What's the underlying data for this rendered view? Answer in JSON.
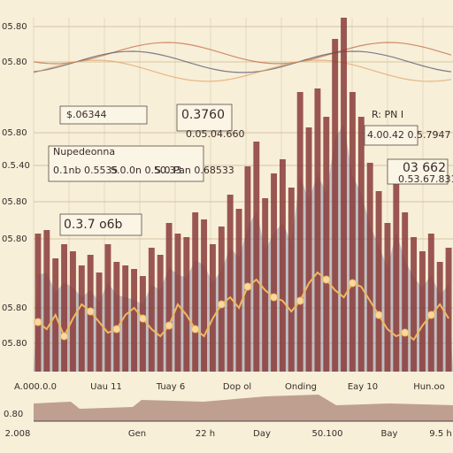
{
  "chart_data": {
    "type": "bar",
    "categories": [
      null,
      null,
      null,
      null,
      null,
      null,
      null,
      null,
      null,
      null,
      null,
      null,
      null,
      null,
      null,
      null,
      null,
      null,
      null,
      null,
      null,
      null,
      null,
      null,
      null,
      null,
      null,
      null,
      null,
      null,
      null,
      null,
      null,
      null,
      null,
      null,
      null,
      null,
      null,
      null,
      null,
      null,
      null,
      null,
      null,
      null,
      null,
      null
    ],
    "values": [
      3.9,
      4.0,
      3.2,
      3.6,
      3.4,
      3.0,
      3.3,
      2.8,
      3.6,
      3.1,
      3.0,
      2.9,
      2.7,
      3.5,
      3.3,
      4.2,
      3.9,
      3.8,
      4.5,
      4.3,
      3.6,
      4.1,
      5.0,
      4.6,
      5.8,
      6.5,
      4.9,
      5.6,
      6.0,
      5.2,
      7.9,
      6.9,
      8.0,
      7.2,
      9.4,
      10.0,
      7.9,
      7.2,
      5.9,
      5.1,
      4.2,
      5.6,
      4.5,
      3.8,
      3.4,
      3.9,
      3.1,
      3.5
    ],
    "color": "#8a3b3a",
    "line_values": [
      1.4,
      1.2,
      1.6,
      1.0,
      1.5,
      1.9,
      1.7,
      1.4,
      1.1,
      1.2,
      1.6,
      1.8,
      1.5,
      1.2,
      1.0,
      1.3,
      1.9,
      1.6,
      1.2,
      1.0,
      1.5,
      1.9,
      2.1,
      1.8,
      2.4,
      2.6,
      2.3,
      2.1,
      2.0,
      1.7,
      2.0,
      2.5,
      2.8,
      2.6,
      2.3,
      2.1,
      2.5,
      2.4,
      2.0,
      1.6,
      1.2,
      1.0,
      1.1,
      0.9,
      1.3,
      1.6,
      1.9,
      1.5
    ],
    "line_color": "#f0b860",
    "ylim": [
      0,
      10
    ],
    "yticks": [
      {
        "value": 9.75,
        "label": "05.80"
      },
      {
        "value": 8.75,
        "label": "05.80"
      },
      {
        "value": 6.75,
        "label": "05.80"
      },
      {
        "value": 5.825,
        "label": "0.5.40"
      },
      {
        "value": 4.8,
        "label": "05.80"
      },
      {
        "value": 3.75,
        "label": "05.80"
      },
      {
        "value": 1.8,
        "label": "05.80"
      },
      {
        "value": 0.8,
        "label": "05.80"
      }
    ],
    "grid": true,
    "x_labels": [
      "A.000.0.0",
      "Uau 11",
      "Tuay 6",
      "Dop ol",
      "Onding",
      "Eay 10",
      "Hun.oo"
    ],
    "bottom_labels": [
      "2.008",
      "Gen",
      "22 h",
      "Day",
      "50.100",
      "Bay",
      "9.5 h"
    ],
    "bottom_axis_label": "0.80",
    "annotations": [
      "$.06344",
      "0.3760",
      "0.05.04.660",
      "Nupedeonna",
      "0.1nb 0.5535",
      "S.0.0n 0.50.33",
      "S.0 Pan 0.68533",
      "0.3.7 o6b",
      "R: PN I",
      "4.00.42 0.5.7947",
      "03 662",
      "0.53.67.831"
    ]
  }
}
